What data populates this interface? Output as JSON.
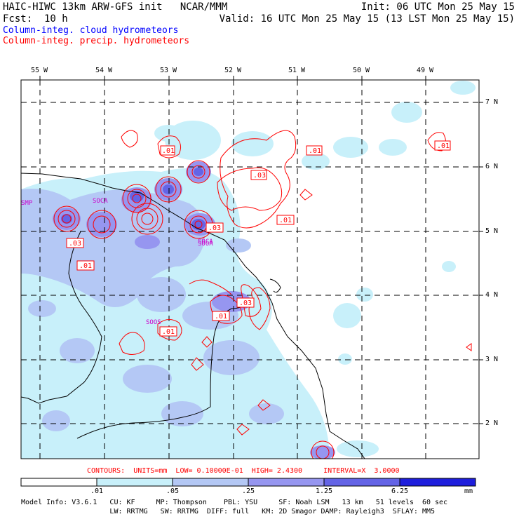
{
  "header": {
    "title_left": "HAIC-HIWC 13km ARW-GFS init   NCAR/MMM",
    "init": "Init: 06 UTC Mon 25 May 15",
    "fcst_label": "Fcst:  10 h",
    "valid": "Valid: 16 UTC Mon 25 May 15 (13 LST Mon 25 May 15)",
    "field1": "Column-integ. cloud hydrometeors",
    "field2": "Column-integ. precip. hydrometeors"
  },
  "colors": {
    "cloud_field": "#0000ff",
    "precip_field": "#ff0000",
    "frame": "#000000"
  },
  "map": {
    "lon_labels": [
      "55 W",
      "54 W",
      "53 W",
      "52 W",
      "51 W",
      "50 W",
      "49 W"
    ],
    "lat_labels": [
      "7 N",
      "6 N",
      "5 N",
      "4 N",
      "3 N",
      "2 N"
    ],
    "contour_labels": [
      ".01",
      ".01",
      ".03",
      ".01",
      ".03",
      ".03",
      ".01",
      ".03",
      ".01",
      ".01",
      ".01"
    ],
    "station_labels": [
      "SMP",
      "SOCA",
      "SOOA",
      "SOOS",
      "SOCA"
    ]
  },
  "contours_info": "CONTOURS:  UNITS=mm  LOW= 0.10000E-01  HIGH= 2.4300     INTERVAL=X  3.0000",
  "colorbar": {
    "ticks": [
      ".01",
      ".05",
      ".25",
      "1.25",
      "6.25",
      "mm"
    ],
    "colors": [
      "#ffffff",
      "#c8f0fa",
      "#b4c8f5",
      "#9696f0",
      "#6464e6",
      "#1e1edc"
    ]
  },
  "footer": {
    "line1": "Model Info: V3.6.1   CU: KF     MP: Thompson    PBL: YSU     SF: Noah LSM   13 km   51 levels  60 sec",
    "line2": "                     LW: RRTMG   SW: RRTMG  DIFF: full   KM: 2D Smagor DAMP: Rayleigh3  SFLAY: MM5"
  }
}
